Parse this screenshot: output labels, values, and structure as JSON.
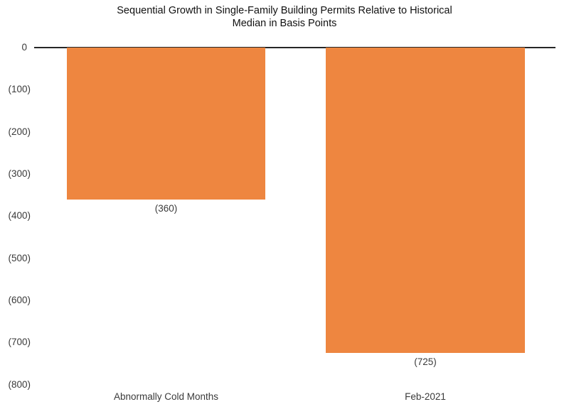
{
  "chart_data": {
    "type": "bar",
    "title": "Sequential Growth in Single-Family Building Permits Relative to Historical Median in Basis Points",
    "categories": [
      "Abnormally Cold Months",
      "Feb-2021"
    ],
    "values": [
      -360,
      -725
    ],
    "data_labels": [
      "(360)",
      "(725)"
    ],
    "yticks": {
      "values": [
        0,
        -100,
        -200,
        -300,
        -400,
        -500,
        -600,
        -700,
        -800
      ],
      "labels": [
        "0",
        "(100)",
        "(200)",
        "(300)",
        "(400)",
        "(500)",
        "(600)",
        "(700)",
        "(800)"
      ]
    },
    "ylim": [
      -800,
      0
    ],
    "xlabel": "",
    "ylabel": "",
    "grid": false,
    "legend": false,
    "bar_color": "#EE8640",
    "axis_line_color": "#262626",
    "text_color": "#3a3a3a",
    "title_color": "#111111"
  }
}
